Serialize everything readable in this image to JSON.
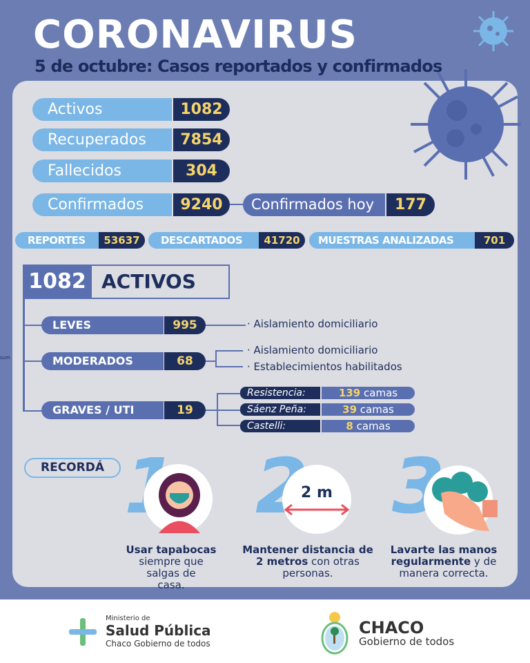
{
  "header": {
    "title": "CORONAVIRUS",
    "subtitle": "5 de octubre: Casos reportados y confirmados"
  },
  "summary": [
    {
      "label": "Activos",
      "value": "1082"
    },
    {
      "label": "Recuperados",
      "value": "7854"
    },
    {
      "label": "Fallecidos",
      "value": "304"
    },
    {
      "label": "Confirmados",
      "value": "9240"
    }
  ],
  "confirmados_hoy": {
    "label": "Confirmados hoy",
    "value": "177"
  },
  "stats": [
    {
      "label": "REPORTES",
      "value": "53637"
    },
    {
      "label": "DESCARTADOS",
      "value": "41720"
    },
    {
      "label": "MUESTRAS ANALIZADAS",
      "value": "701"
    }
  ],
  "activos": {
    "value": "1082",
    "label": "ACTIVOS",
    "leves": {
      "label": "LEVES",
      "value": "995",
      "notes": [
        "· Aislamiento domiciliario"
      ]
    },
    "moderados": {
      "label": "MODERADOS",
      "value": "68",
      "notes": [
        "· Aislamiento domiciliario",
        "· Establecimientos habilitados"
      ]
    },
    "graves": {
      "label": "GRAVES / UTI",
      "value": "19",
      "beds": [
        {
          "city": "Resistencia:",
          "count": "139",
          "unit": "camas"
        },
        {
          "city": "Sáenz Peña:",
          "count": "39",
          "unit": "camas"
        },
        {
          "city": "Castelli:",
          "count": "8",
          "unit": "camas"
        }
      ]
    }
  },
  "side_fragment": "sum",
  "recorda": {
    "label": "RECORDÁ",
    "distance_label": "2 m",
    "tips": [
      {
        "num": "1",
        "bold": "Usar tapabocas",
        "rest": "siempre que salgas de casa."
      },
      {
        "num": "2",
        "bold": "Mantener distancia de 2 metros",
        "rest": "con otras personas."
      },
      {
        "num": "3",
        "bold": "Lavarte las manos regularmente",
        "rest": "y de manera correcta."
      }
    ]
  },
  "footer": {
    "ministry_small": "Ministerio de",
    "ministry_big": "Salud Pública",
    "ministry_sub": "Chaco Gobierno de todos",
    "chaco_big": "CHACO",
    "chaco_sub": "Gobierno de todos"
  },
  "colors": {
    "background": "#6b7db3",
    "panel": "#dcdde3",
    "light_blue": "#7ab6e6",
    "navy": "#1e2e5c",
    "yellow": "#f5d46b",
    "mid_blue": "#5a6fb0"
  }
}
